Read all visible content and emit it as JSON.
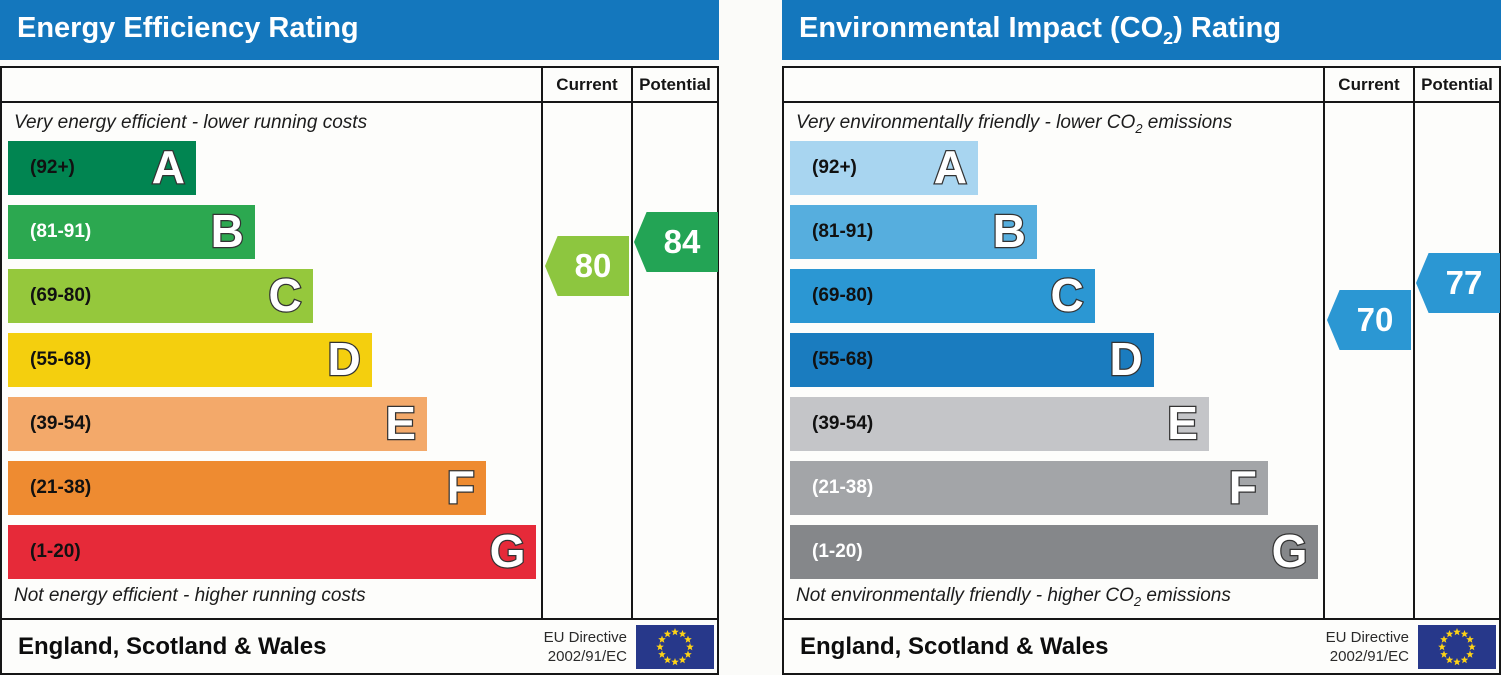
{
  "chart_data": [
    {
      "type": "bar",
      "title": "Energy Efficiency Rating",
      "categories": [
        "A (92+)",
        "B (81-91)",
        "C (69-80)",
        "D (55-68)",
        "E (39-54)",
        "F (21-38)",
        "G (1-20)"
      ],
      "series": [
        {
          "name": "Current",
          "values": [
            80
          ]
        },
        {
          "name": "Potential",
          "values": [
            84
          ]
        }
      ],
      "top_annotation": "Very energy efficient - lower running costs",
      "bottom_annotation": "Not energy efficient - higher running costs",
      "footer": "England, Scotland & Wales",
      "directive": "EU Directive 2002/91/EC"
    },
    {
      "type": "bar",
      "title": "Environmental Impact (CO2) Rating",
      "categories": [
        "A (92+)",
        "B (81-91)",
        "C (69-80)",
        "D (55-68)",
        "E (39-54)",
        "F (21-38)",
        "G (1-20)"
      ],
      "series": [
        {
          "name": "Current",
          "values": [
            70
          ]
        },
        {
          "name": "Potential",
          "values": [
            77
          ]
        }
      ],
      "top_annotation": "Very environmentally friendly - lower CO2 emissions",
      "bottom_annotation": "Not environmentally friendly - higher CO2 emissions",
      "footer": "England, Scotland & Wales",
      "directive": "EU Directive 2002/91/EC"
    }
  ],
  "charts": [
    {
      "title": {
        "pre": "Energy Efficiency Rating",
        "sub": "",
        "post": ""
      },
      "columns": {
        "current": "Current",
        "potential": "Potential"
      },
      "top_caption": {
        "pre": "Very energy efficient - lower running costs",
        "sub": "",
        "post": ""
      },
      "bottom_caption": {
        "pre": "Not energy efficient - higher running costs",
        "sub": "",
        "post": ""
      },
      "bands": [
        {
          "letter": "A",
          "range": "(92+)",
          "color": "#018551",
          "label_color": "#111111",
          "width_pct": 35.4
        },
        {
          "letter": "B",
          "range": "(81-91)",
          "color": "#2ca850",
          "label_color": "#ffffff",
          "width_pct": 46.5
        },
        {
          "letter": "C",
          "range": "(69-80)",
          "color": "#95c83c",
          "label_color": "#111111",
          "width_pct": 57.4
        },
        {
          "letter": "D",
          "range": "(55-68)",
          "color": "#f4cf0e",
          "label_color": "#111111",
          "width_pct": 68.5
        },
        {
          "letter": "E",
          "range": "(39-54)",
          "color": "#f3a96a",
          "label_color": "#111111",
          "width_pct": 78.9
        },
        {
          "letter": "F",
          "range": "(21-38)",
          "color": "#ee8b31",
          "label_color": "#111111",
          "width_pct": 90.0
        },
        {
          "letter": "G",
          "range": "(1-20)",
          "color": "#e62a39",
          "label_color": "#111111",
          "width_pct": 99.5
        }
      ],
      "current": {
        "label": "80",
        "color": "#8dc63f"
      },
      "potential": {
        "label": "84",
        "color": "#23a455"
      },
      "footer": {
        "region": "England, Scotland & Wales",
        "directive_line1": "EU Directive",
        "directive_line2": "2002/91/EC"
      },
      "flag_colors": {
        "field": "#27388a",
        "stars": "#fdd216"
      }
    },
    {
      "title": {
        "pre": "Environmental Impact (CO",
        "sub": "2",
        "post": ") Rating"
      },
      "columns": {
        "current": "Current",
        "potential": "Potential"
      },
      "top_caption": {
        "pre": "Very environmentally friendly - lower CO",
        "sub": "2",
        "post": " emissions"
      },
      "bottom_caption": {
        "pre": "Not environmentally friendly - higher CO",
        "sub": "2",
        "post": " emissions"
      },
      "bands": [
        {
          "letter": "A",
          "range": "(92+)",
          "color": "#a8d5f0",
          "label_color": "#111111",
          "width_pct": 35.4
        },
        {
          "letter": "B",
          "range": "(81-91)",
          "color": "#56aede",
          "label_color": "#111111",
          "width_pct": 46.5
        },
        {
          "letter": "C",
          "range": "(69-80)",
          "color": "#2b97d3",
          "label_color": "#111111",
          "width_pct": 57.4
        },
        {
          "letter": "D",
          "range": "(55-68)",
          "color": "#1a7cbf",
          "label_color": "#111111",
          "width_pct": 68.5
        },
        {
          "letter": "E",
          "range": "(39-54)",
          "color": "#c4c5c8",
          "label_color": "#111111",
          "width_pct": 78.9
        },
        {
          "letter": "F",
          "range": "(21-38)",
          "color": "#a3a5a8",
          "label_color": "#ffffff",
          "width_pct": 90.0
        },
        {
          "letter": "G",
          "range": "(1-20)",
          "color": "#85878a",
          "label_color": "#ffffff",
          "width_pct": 99.5
        }
      ],
      "current": {
        "label": "70",
        "color": "#2b97d3"
      },
      "potential": {
        "label": "77",
        "color": "#2b97d3"
      },
      "footer": {
        "region": "England, Scotland & Wales",
        "directive_line1": "EU Directive",
        "directive_line2": "2002/91/EC"
      },
      "flag_colors": {
        "field": "#27388a",
        "stars": "#fdd216"
      }
    }
  ]
}
